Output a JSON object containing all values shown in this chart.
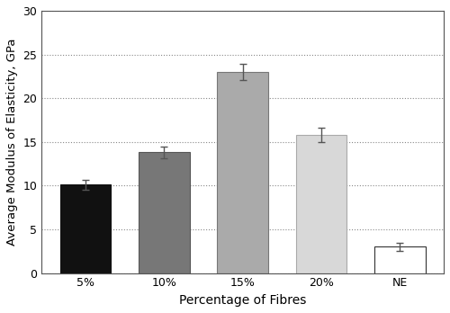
{
  "categories": [
    "5%",
    "10%",
    "15%",
    "20%",
    "NE"
  ],
  "values": [
    10.1,
    13.8,
    23.0,
    15.8,
    3.0
  ],
  "errors": [
    0.6,
    0.7,
    0.9,
    0.8,
    0.5
  ],
  "bar_colors": [
    "#111111",
    "#777777",
    "#aaaaaa",
    "#d8d8d8",
    "#ffffff"
  ],
  "bar_edgecolors": [
    "#111111",
    "#555555",
    "#777777",
    "#aaaaaa",
    "#333333"
  ],
  "ylabel": "Average Modulus of Elasticity, GPa",
  "xlabel": "Percentage of Fibres",
  "ylim": [
    0,
    30
  ],
  "yticks": [
    0,
    5,
    10,
    15,
    20,
    25,
    30
  ],
  "grid_color": "#888888",
  "background_color": "#ffffff",
  "bar_width": 0.65,
  "errorbar_color": "#555555",
  "errorbar_capsize": 3,
  "spine_color": "#555555",
  "ylabel_fontsize": 9.5,
  "xlabel_fontsize": 10,
  "tick_fontsize": 9
}
